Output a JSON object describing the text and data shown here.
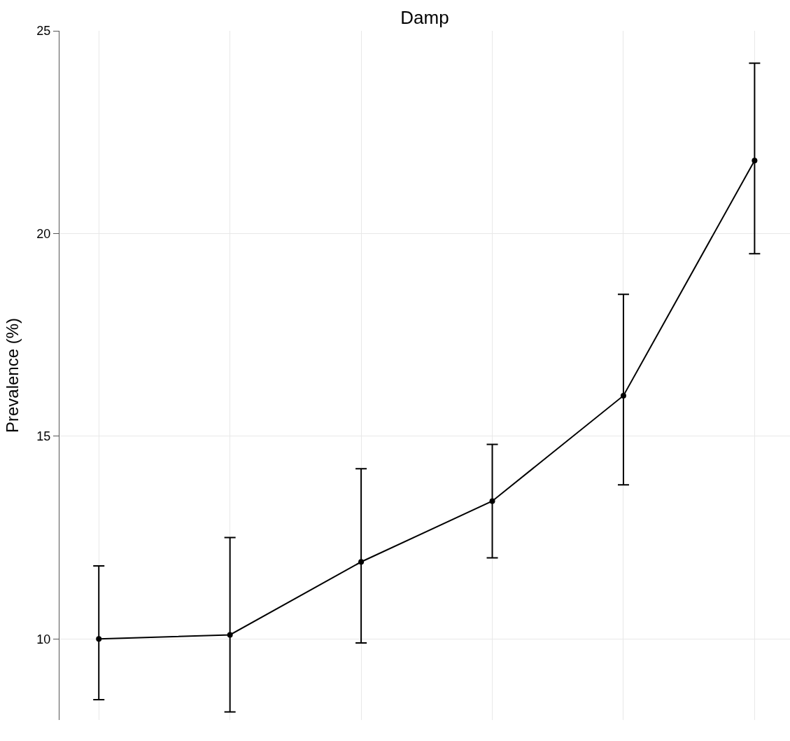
{
  "chart_data": {
    "type": "line",
    "title": "Damp",
    "ylabel": "Prevalence (%)",
    "categories": [
      null,
      null,
      null,
      null,
      null,
      null
    ],
    "series": [
      {
        "color": "#000000",
        "values": [
          10.0,
          10.1,
          11.9,
          13.4,
          16.0,
          21.8
        ],
        "errors": [
          [
            8.5,
            11.8
          ],
          [
            8.2,
            12.5
          ],
          [
            9.9,
            14.2
          ],
          [
            12.0,
            14.8
          ],
          [
            13.8,
            18.5
          ],
          [
            19.5,
            24.2
          ]
        ]
      }
    ],
    "ylim": [
      8,
      25
    ],
    "yticks": [
      10,
      15,
      20,
      25
    ],
    "grid": true,
    "marker": "circle",
    "line_style": "solid",
    "tick_labels": "y"
  }
}
